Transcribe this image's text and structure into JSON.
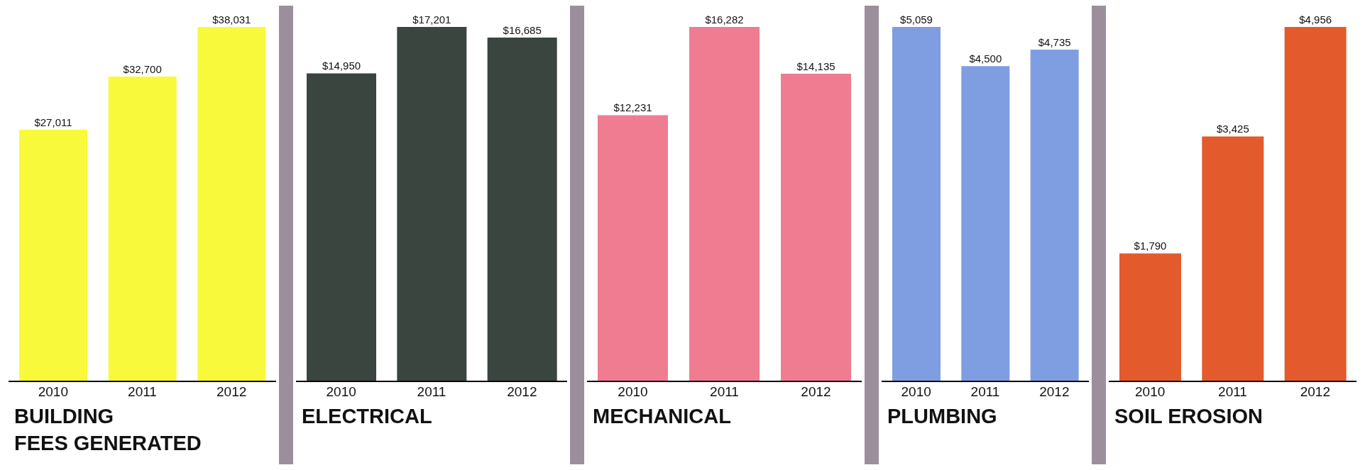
{
  "chart_data": [
    {
      "type": "bar",
      "title": "BUILDING\nFEES GENERATED",
      "categories": [
        "2010",
        "2011",
        "2012"
      ],
      "values": [
        27011,
        32700,
        38031
      ],
      "value_labels": [
        "$27,011",
        "$32,700",
        "$38,031"
      ],
      "color": "#f9f93c",
      "tick_labels": "x"
    },
    {
      "type": "bar",
      "title": "ELECTRICAL",
      "categories": [
        "2010",
        "2011",
        "2012"
      ],
      "values": [
        14950,
        17201,
        16685
      ],
      "value_labels": [
        "$14,950",
        "$17,201",
        "$16,685"
      ],
      "color": "#3b4540",
      "tick_labels": "x"
    },
    {
      "type": "bar",
      "title": "MECHANICAL",
      "categories": [
        "2010",
        "2011",
        "2012"
      ],
      "values": [
        12231,
        16282,
        14135
      ],
      "value_labels": [
        "$12,231",
        "$16,282",
        "$14,135"
      ],
      "color": "#f07c92",
      "tick_labels": "x"
    },
    {
      "type": "bar",
      "title": "PLUMBING",
      "categories": [
        "2010",
        "2011",
        "2012"
      ],
      "values": [
        5059,
        4500,
        4735
      ],
      "value_labels": [
        "$5,059",
        "$4,500",
        "$4,735"
      ],
      "color": "#7f9ee2",
      "tick_labels": "x"
    },
    {
      "type": "bar",
      "title": "SOIL EROSION",
      "categories": [
        "2010",
        "2011",
        "2012"
      ],
      "values": [
        1790,
        3425,
        4956
      ],
      "value_labels": [
        "$1,790",
        "$3,425",
        "$4,956"
      ],
      "color": "#e35a2c",
      "tick_labels": "x"
    }
  ]
}
